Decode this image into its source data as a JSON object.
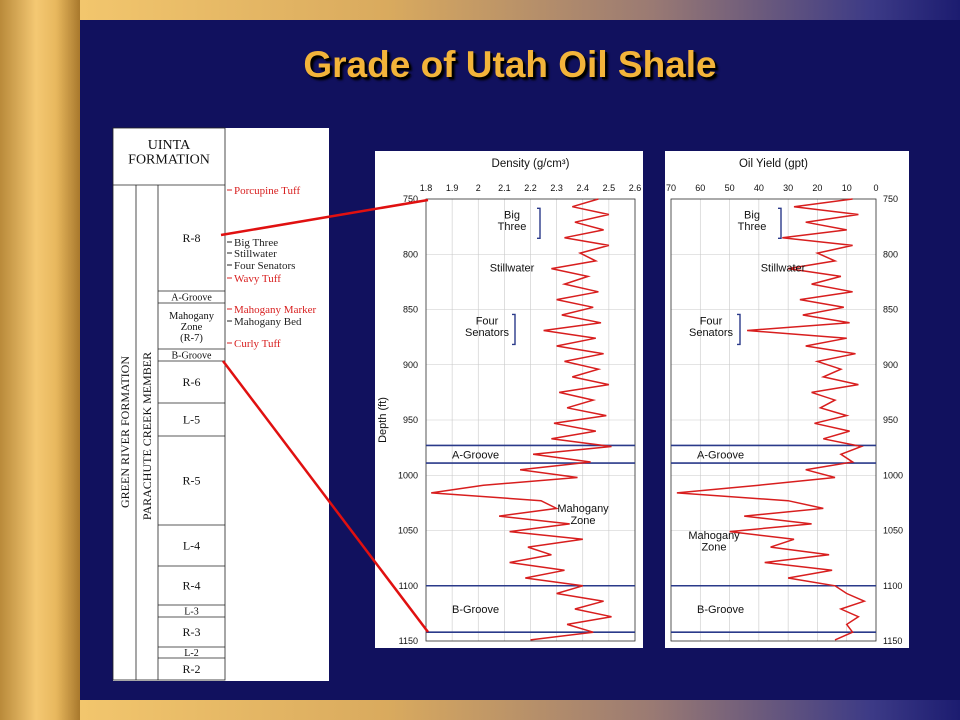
{
  "slide": {
    "title": "Grade of Utah Oil Shale"
  },
  "colors": {
    "curve": "#d81e1e",
    "marker": "#2a3a8a",
    "connector": "#e01010",
    "label_red": "#d82020",
    "title": "#f3b43a"
  },
  "column": {
    "formation_top": "UINTA\nFORMATION",
    "formation_vertical": "GREEN RIVER FORMATION",
    "member_vertical": "PARACHUTE CREEK MEMBER",
    "zones": [
      "R-8",
      "A-Groove",
      "Mahogany\nZone\n(R-7)",
      "B-Groove",
      "R-6",
      "L-5",
      "R-5",
      "L-4",
      "R-4",
      "L-3",
      "R-3",
      "L-2",
      "R-2"
    ],
    "side_labels": [
      {
        "text": "Porcupine Tuff",
        "red": true
      },
      {
        "text": "Big Three",
        "red": false
      },
      {
        "text": "Stillwater",
        "red": false
      },
      {
        "text": "Four Senators",
        "red": false
      },
      {
        "text": "Wavy Tuff",
        "red": true
      },
      {
        "text": "Mahogany Marker",
        "red": true
      },
      {
        "text": "Mahogany Bed",
        "red": false
      },
      {
        "text": "Curly Tuff",
        "red": true
      }
    ]
  },
  "chart_data": [
    {
      "type": "line",
      "title": "Density (g/cm³)",
      "xlabel": "Density (g/cm³)",
      "ylabel": "Depth (ft)",
      "xlim": [
        1.8,
        2.6
      ],
      "ylim": [
        1150,
        750
      ],
      "x_ticks": [
        "1.8",
        "1.9",
        "2",
        "2.1",
        "2.2",
        "2.3",
        "2.4",
        "2.5",
        "2.6"
      ],
      "y_ticks": [
        "750",
        "800",
        "850",
        "900",
        "950",
        "1000",
        "1050",
        "1100",
        "1150"
      ],
      "grid": true,
      "markers": [
        {
          "label": "A-Groove",
          "top": 973,
          "bottom": 989
        },
        {
          "label": "B-Groove",
          "top": 1100,
          "bottom": 1142
        }
      ],
      "annotations": [
        {
          "text": "Big\nThree",
          "depth": 772
        },
        {
          "text": "Stillwater",
          "depth": 813
        },
        {
          "text": "Four\nSenators",
          "depth": 868
        },
        {
          "text": "Mahogany\nZone",
          "depth": 1038
        }
      ],
      "series": [
        {
          "depth": [
            750,
            757,
            764,
            771,
            778,
            785,
            792,
            799,
            806,
            813,
            820,
            827,
            834,
            841,
            848,
            855,
            862,
            869,
            876,
            883,
            890,
            897,
            904,
            911,
            918,
            925,
            932,
            939,
            946,
            953,
            960,
            967,
            974,
            981,
            988,
            995,
            1002,
            1009,
            1016,
            1023,
            1030,
            1037,
            1044,
            1051,
            1058,
            1065,
            1072,
            1079,
            1086,
            1093,
            1100,
            1107,
            1114,
            1121,
            1128,
            1135,
            1142,
            1149
          ],
          "values": [
            2.46,
            2.36,
            2.5,
            2.37,
            2.48,
            2.33,
            2.5,
            2.39,
            2.45,
            2.28,
            2.42,
            2.33,
            2.46,
            2.3,
            2.44,
            2.32,
            2.47,
            2.25,
            2.45,
            2.3,
            2.48,
            2.33,
            2.46,
            2.36,
            2.5,
            2.31,
            2.44,
            2.34,
            2.49,
            2.29,
            2.45,
            2.28,
            2.51,
            2.21,
            2.43,
            2.16,
            2.38,
            2.02,
            1.82,
            2.24,
            2.3,
            2.08,
            2.35,
            2.12,
            2.4,
            2.19,
            2.28,
            2.12,
            2.33,
            2.18,
            2.4,
            2.3,
            2.48,
            2.37,
            2.51,
            2.34,
            2.44,
            2.2
          ]
        }
      ]
    },
    {
      "type": "line",
      "title": "Oil Yield (gpt)",
      "xlabel": "Oil Yield (gpt)",
      "ylabel": "Depth (ft)",
      "xlim": [
        70,
        0
      ],
      "ylim": [
        1150,
        750
      ],
      "x_ticks": [
        "70",
        "60",
        "50",
        "40",
        "30",
        "20",
        "10",
        "0"
      ],
      "y_ticks": [
        "750",
        "800",
        "850",
        "900",
        "950",
        "1000",
        "1050",
        "1100",
        "1150"
      ],
      "grid": true,
      "markers": [
        {
          "label": "A-Groove",
          "top": 973,
          "bottom": 989
        },
        {
          "label": "B-Groove",
          "top": 1100,
          "bottom": 1142
        }
      ],
      "annotations": [
        {
          "text": "Big\nThree",
          "depth": 772
        },
        {
          "text": "Stillwater",
          "depth": 813
        },
        {
          "text": "Four\nSenators",
          "depth": 868
        },
        {
          "text": "Mahogany\nZone",
          "depth": 1062
        }
      ],
      "series": [
        {
          "depth": [
            750,
            757,
            764,
            771,
            778,
            785,
            792,
            799,
            806,
            813,
            820,
            827,
            834,
            841,
            848,
            855,
            862,
            869,
            876,
            883,
            890,
            897,
            904,
            911,
            918,
            925,
            932,
            939,
            946,
            953,
            960,
            967,
            974,
            981,
            988,
            995,
            1002,
            1009,
            1016,
            1023,
            1030,
            1037,
            1044,
            1051,
            1058,
            1065,
            1072,
            1079,
            1086,
            1093,
            1100,
            1107,
            1114,
            1121,
            1128,
            1135,
            1142,
            1149
          ],
          "values": [
            8,
            28,
            6,
            24,
            10,
            32,
            8,
            20,
            14,
            30,
            12,
            22,
            8,
            26,
            11,
            25,
            9,
            44,
            10,
            24,
            7,
            20,
            12,
            18,
            6,
            22,
            14,
            19,
            10,
            21,
            9,
            18,
            5,
            12,
            8,
            24,
            14,
            40,
            68,
            30,
            18,
            45,
            22,
            50,
            28,
            36,
            16,
            38,
            15,
            30,
            14,
            10,
            4,
            12,
            6,
            10,
            8,
            14
          ]
        }
      ]
    }
  ]
}
